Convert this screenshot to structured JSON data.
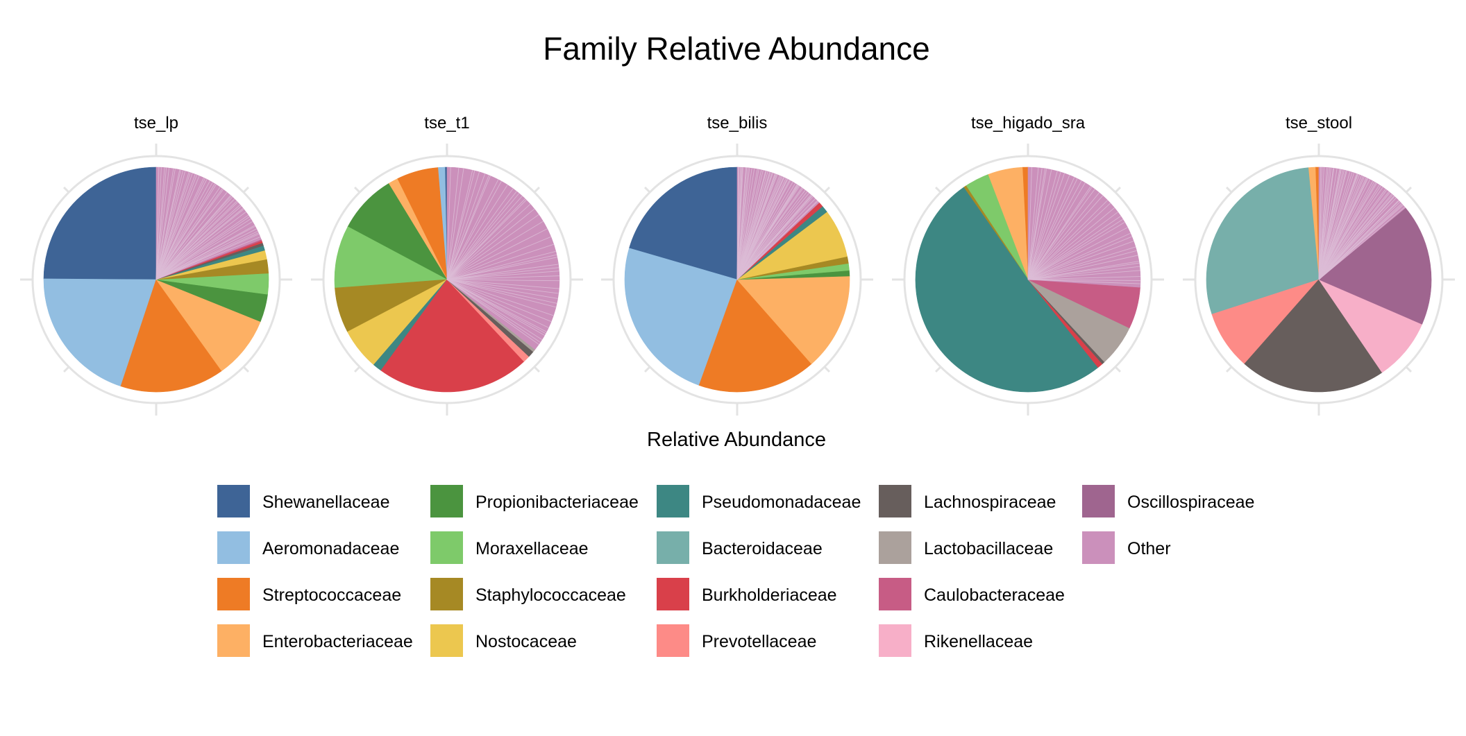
{
  "chart_data": {
    "type": "pie",
    "title": "Family Relative Abundance",
    "legend_title": "Relative Abundance",
    "legend_placement": "bottom",
    "families": [
      "Shewanellaceae",
      "Aeromonadaceae",
      "Streptococcaceae",
      "Enterobacteriaceae",
      "Propionibacteriaceae",
      "Moraxellaceae",
      "Staphylococcaceae",
      "Nostocaceae",
      "Pseudomonadaceae",
      "Bacteroidaceae",
      "Burkholderiaceae",
      "Prevotellaceae",
      "Lachnospiraceae",
      "Lactobacillaceae",
      "Caulobacteraceae",
      "Rikenellaceae",
      "Oscillospiraceae",
      "Other"
    ],
    "colors": {
      "Shewanellaceae": "#3e6496",
      "Aeromonadaceae": "#92bee1",
      "Streptococcaceae": "#ee7b25",
      "Enterobacteriaceae": "#fdb064",
      "Propionibacteriaceae": "#4b943f",
      "Moraxellaceae": "#7eca6a",
      "Staphylococcaceae": "#a68924",
      "Nostocaceae": "#ecc74f",
      "Pseudomonadaceae": "#3d8783",
      "Bacteroidaceae": "#77afaa",
      "Burkholderiaceae": "#d9404a",
      "Prevotellaceae": "#fd8b87",
      "Lachnospiraceae": "#675e5c",
      "Lactobacillaceae": "#aba19c",
      "Caulobacteraceae": "#c75c85",
      "Rikenellaceae": "#f7afc8",
      "Oscillospiraceae": "#9f658f",
      "Other": "#cb90bb"
    },
    "other_line_color": "#dcbcd6",
    "grid": true,
    "panels": [
      {
        "name": "tse_lp",
        "slices": [
          {
            "family": "Shewanellaceae",
            "value": 0.249
          },
          {
            "family": "Aeromonadaceae",
            "value": 0.2
          },
          {
            "family": "Streptococcaceae",
            "value": 0.15
          },
          {
            "family": "Enterobacteriaceae",
            "value": 0.09
          },
          {
            "family": "Propionibacteriaceae",
            "value": 0.04
          },
          {
            "family": "Moraxellaceae",
            "value": 0.03
          },
          {
            "family": "Staphylococcaceae",
            "value": 0.02
          },
          {
            "family": "Nostocaceae",
            "value": 0.013
          },
          {
            "family": "Pseudomonadaceae",
            "value": 0.007
          },
          {
            "family": "Lachnospiraceae",
            "value": 0.004
          },
          {
            "family": "Burkholderiaceae",
            "value": 0.003
          },
          {
            "family": "Caulobacteraceae",
            "value": 0.002
          },
          {
            "family": "Other",
            "value": 0.192
          }
        ]
      },
      {
        "name": "tse_t1",
        "slices": [
          {
            "family": "Shewanellaceae",
            "value": 0.003
          },
          {
            "family": "Aeromonadaceae",
            "value": 0.01
          },
          {
            "family": "Streptococcaceae",
            "value": 0.06
          },
          {
            "family": "Enterobacteriaceae",
            "value": 0.014
          },
          {
            "family": "Propionibacteriaceae",
            "value": 0.085
          },
          {
            "family": "Moraxellaceae",
            "value": 0.09
          },
          {
            "family": "Staphylococcaceae",
            "value": 0.065
          },
          {
            "family": "Nostocaceae",
            "value": 0.06
          },
          {
            "family": "Pseudomonadaceae",
            "value": 0.013
          },
          {
            "family": "Burkholderiaceae",
            "value": 0.22
          },
          {
            "family": "Prevotellaceae",
            "value": 0.01
          },
          {
            "family": "Lachnospiraceae",
            "value": 0.009
          },
          {
            "family": "Lactobacillaceae",
            "value": 0.004
          },
          {
            "family": "Other",
            "value": 0.357
          }
        ]
      },
      {
        "name": "tse_bilis",
        "slices": [
          {
            "family": "Shewanellaceae",
            "value": 0.205
          },
          {
            "family": "Aeromonadaceae",
            "value": 0.24
          },
          {
            "family": "Streptococcaceae",
            "value": 0.17
          },
          {
            "family": "Enterobacteriaceae",
            "value": 0.14
          },
          {
            "family": "Propionibacteriaceae",
            "value": 0.008
          },
          {
            "family": "Moraxellaceae",
            "value": 0.01
          },
          {
            "family": "Staphylococcaceae",
            "value": 0.01
          },
          {
            "family": "Nostocaceae",
            "value": 0.07
          },
          {
            "family": "Pseudomonadaceae",
            "value": 0.01
          },
          {
            "family": "Burkholderiaceae",
            "value": 0.007
          },
          {
            "family": "Other",
            "value": 0.13
          }
        ]
      },
      {
        "name": "tse_higado_sra",
        "slices": [
          {
            "family": "Streptococcaceae",
            "value": 0.008
          },
          {
            "family": "Enterobacteriaceae",
            "value": 0.05
          },
          {
            "family": "Moraxellaceae",
            "value": 0.035
          },
          {
            "family": "Staphylococcaceae",
            "value": 0.004
          },
          {
            "family": "Pseudomonadaceae",
            "value": 0.51
          },
          {
            "family": "Burkholderiaceae",
            "value": 0.008
          },
          {
            "family": "Lachnospiraceae",
            "value": 0.004
          },
          {
            "family": "Lactobacillaceae",
            "value": 0.06
          },
          {
            "family": "Caulobacteraceae",
            "value": 0.06
          },
          {
            "family": "Other",
            "value": 0.261
          }
        ]
      },
      {
        "name": "tse_stool",
        "slices": [
          {
            "family": "Streptococcaceae",
            "value": 0.005
          },
          {
            "family": "Enterobacteriaceae",
            "value": 0.01
          },
          {
            "family": "Bacteroidaceae",
            "value": 0.285
          },
          {
            "family": "Prevotellaceae",
            "value": 0.085
          },
          {
            "family": "Lachnospiraceae",
            "value": 0.21
          },
          {
            "family": "Rikenellaceae",
            "value": 0.09
          },
          {
            "family": "Oscillospiraceae",
            "value": 0.175
          },
          {
            "family": "Other",
            "value": 0.14
          }
        ]
      }
    ]
  }
}
